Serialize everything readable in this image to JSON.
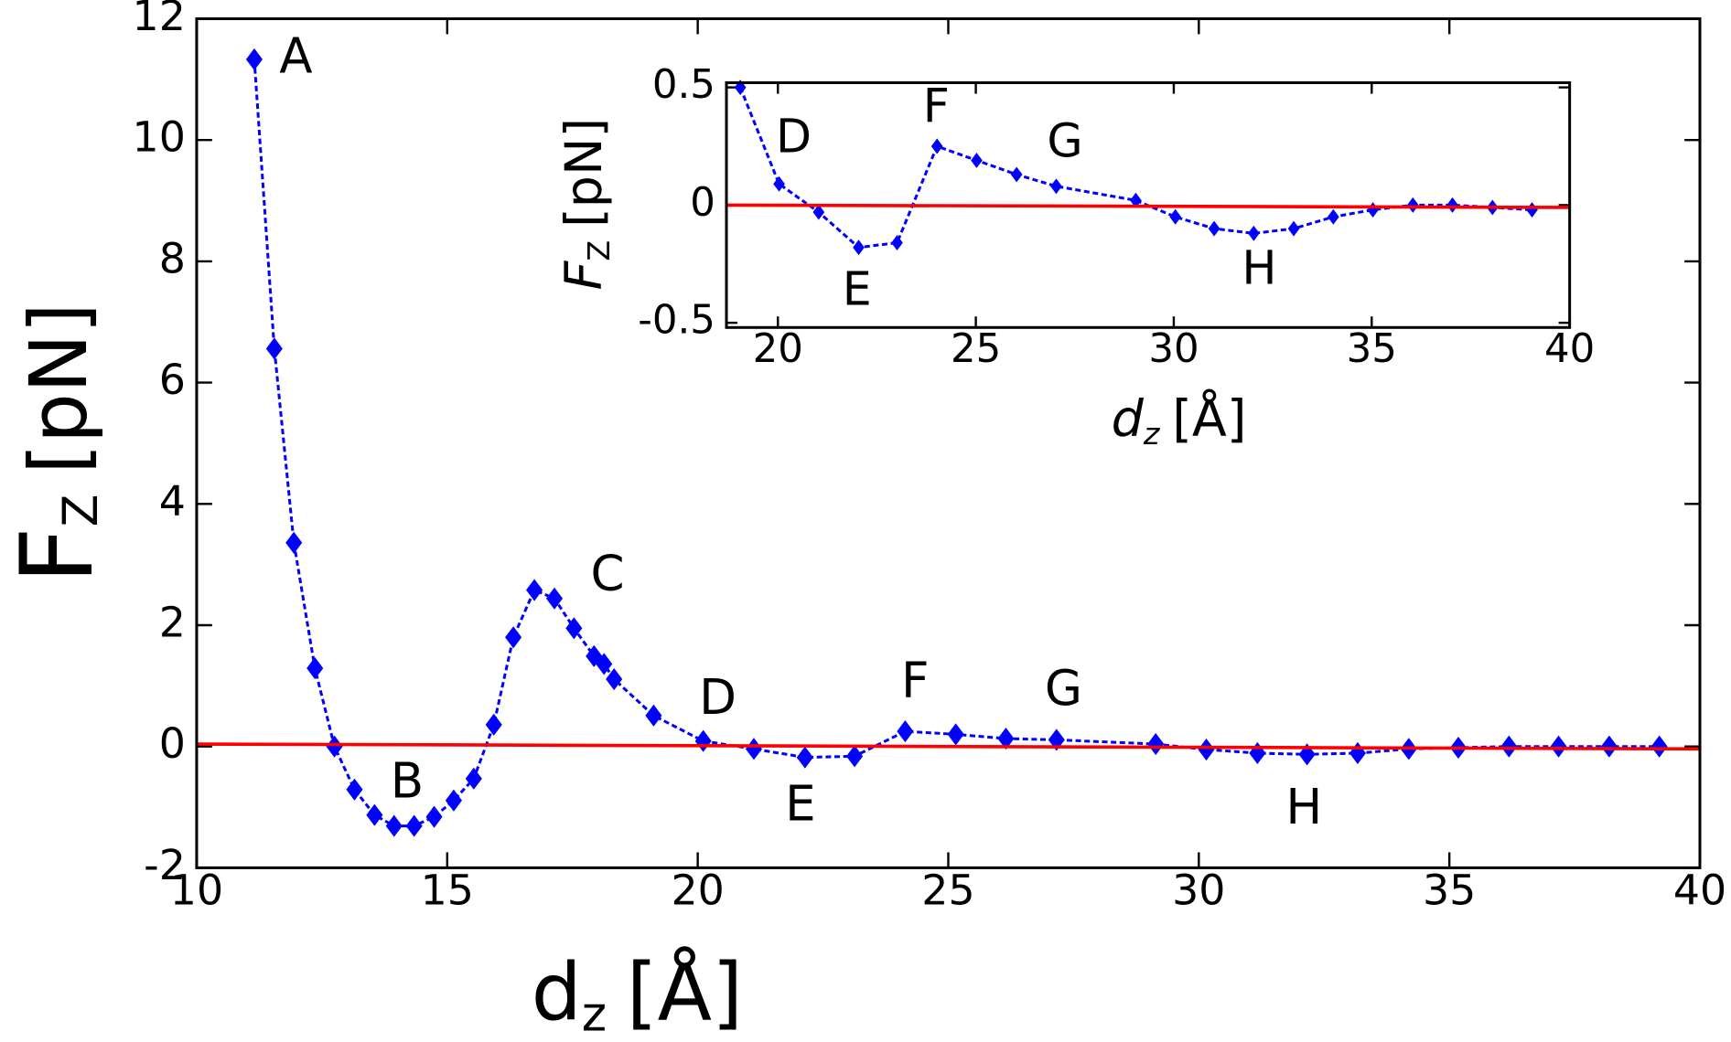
{
  "chart_data": [
    {
      "type": "line",
      "xlabel": {
        "main": "d",
        "sub": "z",
        "rest": "[Å]"
      },
      "ylabel": {
        "main": "F",
        "sub": "Z",
        "rest": "[pN]"
      },
      "xlim": [
        10,
        40
      ],
      "ylim": [
        -2,
        12
      ],
      "xticks": [
        10,
        15,
        20,
        25,
        30,
        35,
        40
      ],
      "yticks": [
        -2,
        0,
        2,
        4,
        6,
        8,
        10,
        12
      ],
      "series": [
        {
          "color": "#0000ff",
          "marker": "diamond",
          "linestyle": "dashed",
          "x": [
            11.15,
            11.55,
            11.94,
            12.36,
            12.75,
            13.15,
            13.55,
            13.94,
            14.34,
            14.74,
            15.13,
            15.53,
            15.93,
            16.32,
            16.74,
            17.14,
            17.53,
            17.93,
            18.13,
            18.33,
            19.12,
            20.11,
            21.12,
            22.14,
            23.13,
            24.14,
            25.15,
            26.15,
            27.16,
            29.14,
            30.15,
            31.17,
            32.16,
            33.17,
            34.19,
            35.18,
            36.19,
            37.18,
            38.19,
            39.19
          ],
          "values": [
            11.33,
            6.56,
            3.36,
            1.29,
            0,
            -0.71,
            -1.13,
            -1.31,
            -1.31,
            -1.16,
            -0.89,
            -0.53,
            0.36,
            1.8,
            2.58,
            2.44,
            1.95,
            1.49,
            1.36,
            1.11,
            0.51,
            0.09,
            -0.04,
            -0.18,
            -0.16,
            0.25,
            0.2,
            0.13,
            0.11,
            0.04,
            -0.05,
            -0.11,
            -0.13,
            -0.11,
            -0.04,
            -0.02,
            0,
            0,
            0,
            0
          ]
        },
        {
          "color": "#ff0000",
          "x": [
            10,
            40
          ],
          "values": [
            0.04,
            -0.04
          ]
        }
      ],
      "annotations": [
        {
          "text": "A",
          "x": 11.98,
          "y": 11.33
        },
        {
          "text": "B",
          "x": 14.2,
          "y": -0.62
        },
        {
          "text": "C",
          "x": 18.2,
          "y": 2.8
        },
        {
          "text": "D",
          "x": 20.4,
          "y": 0.76
        },
        {
          "text": "E",
          "x": 22.05,
          "y": -1.0
        },
        {
          "text": "F",
          "x": 24.34,
          "y": 1.04
        },
        {
          "text": "G",
          "x": 27.3,
          "y": 0.91
        },
        {
          "text": "H",
          "x": 32.1,
          "y": -1.05
        }
      ]
    },
    {
      "type": "line",
      "xlabel": {
        "main": "d",
        "sub": "z",
        "rest": "[Å]"
      },
      "ylabel": {
        "main": "F",
        "sub": "Z",
        "rest": "[pN]"
      },
      "xlim": [
        18.7,
        40
      ],
      "ylim": [
        -0.52,
        0.52
      ],
      "xticks": [
        20,
        25,
        30,
        35,
        40
      ],
      "yticks": [
        -0.5,
        0,
        0.5
      ],
      "series": [
        {
          "color": "#0000ff",
          "marker": "diamond",
          "linestyle": "dashed",
          "x": [
            19.05,
            20.03,
            21.03,
            22.04,
            23.01,
            24.02,
            25.02,
            26.03,
            27.03,
            29.04,
            30.04,
            31.02,
            32.02,
            33.03,
            34.03,
            35.03,
            36.04,
            37.04,
            38.05,
            39.05
          ],
          "values": [
            0.5,
            0.09,
            -0.03,
            -0.18,
            -0.16,
            0.25,
            0.19,
            0.13,
            0.08,
            0.02,
            -0.05,
            -0.1,
            -0.12,
            -0.1,
            -0.05,
            -0.02,
            0,
            0,
            -0.01,
            -0.02
          ]
        },
        {
          "color": "#ff0000",
          "x": [
            18.7,
            40
          ],
          "values": [
            0,
            -0.01
          ]
        }
      ],
      "annotations": [
        {
          "text": "D",
          "x": 20.4,
          "y": 0.28
        },
        {
          "text": "E",
          "x": 22.0,
          "y": -0.37
        },
        {
          "text": "F",
          "x": 24.0,
          "y": 0.41
        },
        {
          "text": "G",
          "x": 27.25,
          "y": 0.26
        },
        {
          "text": "H",
          "x": 32.16,
          "y": -0.28
        }
      ]
    }
  ]
}
